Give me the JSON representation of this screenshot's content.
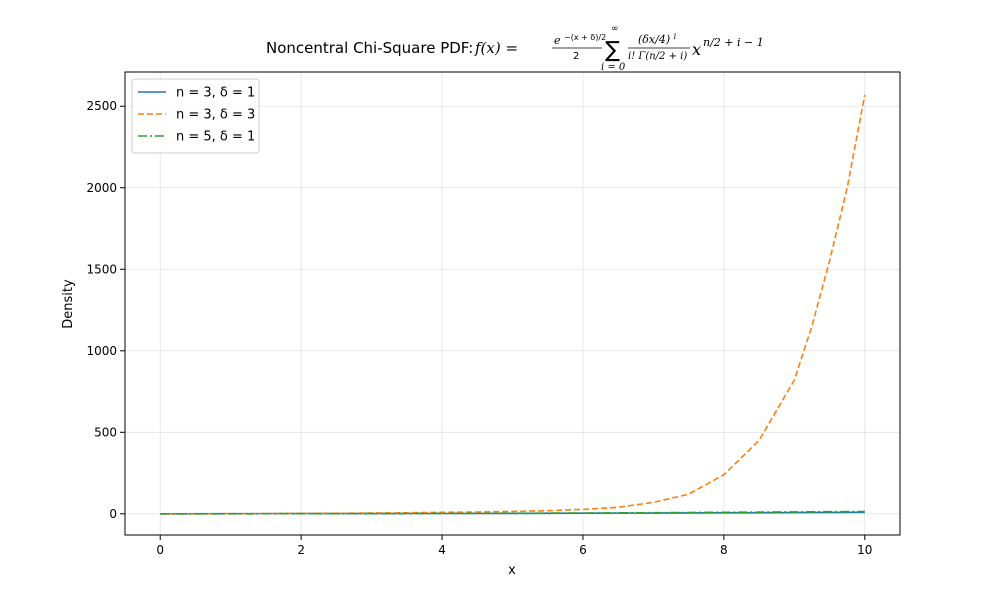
{
  "chart_data": {
    "type": "line",
    "title_prefix": "Noncentral Chi-Square PDF: ",
    "title_formula": {
      "lhs": "f(x) =",
      "frac1_num": "e",
      "frac1_num_exp": "−(x + δ)/2",
      "frac1_den": "2",
      "sum_top": "∞",
      "sum_symbol": "∑",
      "sum_bottom": "i = 0",
      "frac2_num": "(δx/4)",
      "frac2_num_exp": "i",
      "frac2_den": "i! Γ(n/2 + i)",
      "power_base": "x",
      "power_exp": "n/2 + i − 1"
    },
    "xlabel": "x",
    "ylabel": "Density",
    "xlim": [
      -0.5,
      10.5
    ],
    "ylim": [
      -130,
      2710
    ],
    "xticks": [
      0,
      2,
      4,
      6,
      8,
      10
    ],
    "yticks": [
      0,
      500,
      1000,
      1500,
      2000,
      2500
    ],
    "grid": true,
    "legend_position": "top-left",
    "series": [
      {
        "name": "n = 3, δ = 1",
        "color": "#1f77b4",
        "style": "solid",
        "x": [
          0,
          1,
          2,
          3,
          4,
          5,
          6,
          7,
          8,
          9,
          10
        ],
        "y": [
          0,
          0.5,
          1.0,
          1.5,
          2.0,
          2.5,
          3.5,
          4.5,
          6.0,
          7.5,
          9.5
        ]
      },
      {
        "name": "n = 3, δ = 3",
        "color": "#ff7f0e",
        "style": "dashed",
        "x": [
          0,
          0.5,
          1,
          1.5,
          2,
          2.5,
          3,
          3.5,
          4,
          4.5,
          5,
          5.5,
          6,
          6.5,
          7,
          7.5,
          8,
          8.5,
          9,
          9.25,
          9.5,
          9.75,
          10
        ],
        "y": [
          0,
          0.3,
          0.7,
          1.3,
          2.2,
          3.3,
          4.7,
          6.4,
          9.0,
          11,
          14.5,
          19,
          27,
          40,
          70,
          120,
          240,
          450,
          820,
          1150,
          1550,
          2000,
          2570
        ]
      },
      {
        "name": "n = 5, δ = 1",
        "color": "#2ca02c",
        "style": "dashdot",
        "x": [
          0,
          1,
          2,
          3,
          4,
          5,
          6,
          7,
          8,
          9,
          10
        ],
        "y": [
          0,
          0.2,
          0.7,
          1.4,
          2.4,
          3.5,
          5.0,
          7.0,
          9.0,
          11.5,
          14.0
        ]
      }
    ]
  }
}
